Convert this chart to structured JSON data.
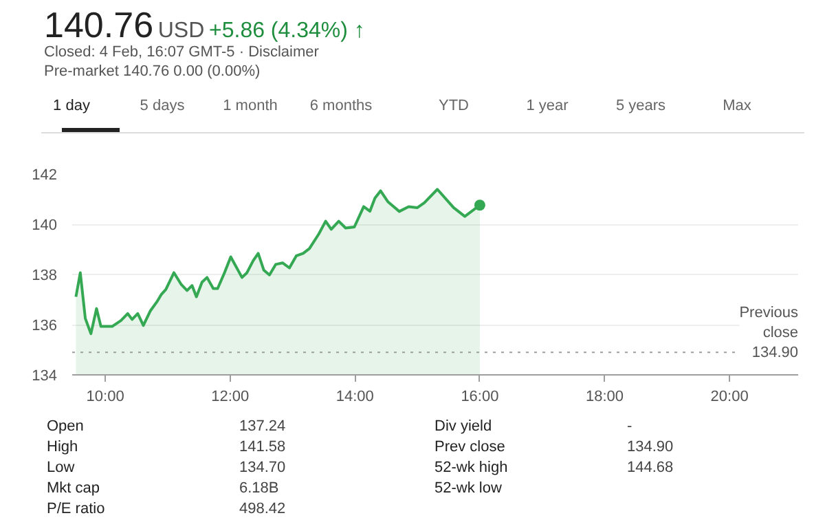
{
  "chart_data": {
    "type": "area",
    "title": "140.76",
    "subtitle": "USD",
    "annotations": [
      "+5.86 (4.34%) ↑",
      "Closed: 4 Feb, 16:07 GMT-5 · Disclaimer",
      "Pre-market 140.76 0.00 (0.00%)",
      "1 day",
      "5 days",
      "1 month",
      "6 months",
      "YTD",
      "1 year",
      "5 years",
      "Max",
      "Open",
      "137.24",
      "High",
      "141.58",
      "Low",
      "134.70",
      "Mkt cap",
      "6.18B",
      "P/E ratio",
      "498.42",
      "Div yield",
      "-",
      "Prev close",
      "134.90",
      "52-wk high",
      "144.68",
      "52-wk low"
    ],
    "series": [
      {
        "color": "#34a853",
        "x": [
          9.53,
          9.6,
          9.68,
          9.77,
          9.86,
          9.93,
          10.11,
          10.25,
          10.36,
          10.43,
          10.52,
          10.61,
          10.72,
          10.83,
          10.9,
          10.97,
          11.1,
          11.22,
          11.31,
          11.39,
          11.46,
          11.55,
          11.63,
          11.73,
          11.8,
          11.91,
          12.01,
          12.19,
          12.27,
          12.37,
          12.45,
          12.54,
          12.63,
          12.73,
          12.84,
          12.95,
          13.06,
          13.17,
          13.27,
          13.42,
          13.53,
          13.62,
          13.74,
          13.85,
          13.99,
          14.14,
          14.24,
          14.32,
          14.41,
          14.53,
          14.71,
          14.86,
          15.0,
          15.11,
          15.32,
          15.58,
          15.76,
          16.0
        ],
        "values": [
          137.11,
          138.07,
          136.25,
          135.64,
          136.64,
          135.93,
          135.93,
          136.16,
          136.44,
          136.21,
          136.44,
          135.97,
          136.54,
          136.92,
          137.21,
          137.4,
          138.07,
          137.59,
          137.36,
          137.56,
          137.11,
          137.69,
          137.88,
          137.44,
          137.44,
          138.07,
          138.7,
          137.88,
          138.07,
          138.55,
          138.84,
          138.17,
          137.98,
          138.4,
          138.46,
          138.26,
          138.74,
          138.84,
          139.03,
          139.61,
          140.12,
          139.8,
          140.12,
          139.85,
          139.89,
          140.7,
          140.52,
          141.04,
          141.33,
          140.89,
          140.51,
          140.7,
          140.66,
          140.85,
          141.39,
          140.66,
          140.31,
          140.76
        ]
      }
    ],
    "xlim": [
      9.47,
      21.1
    ],
    "ylim": [
      134,
      142
    ],
    "xticks": [
      {
        "value": 10,
        "label": "10:00"
      },
      {
        "value": 12,
        "label": "12:00"
      },
      {
        "value": 14,
        "label": "14:00"
      },
      {
        "value": 16,
        "label": "16:00"
      },
      {
        "value": 18,
        "label": "18:00"
      },
      {
        "value": 20,
        "label": "20:00"
      }
    ],
    "yticks": [
      134,
      136,
      138,
      140,
      142
    ],
    "grid": "y",
    "ref_lines": [
      {
        "axis": "y",
        "value": 134.9,
        "label": "Previous close",
        "line_style": "dotted",
        "color": "#9e9e9e"
      }
    ]
  }
}
